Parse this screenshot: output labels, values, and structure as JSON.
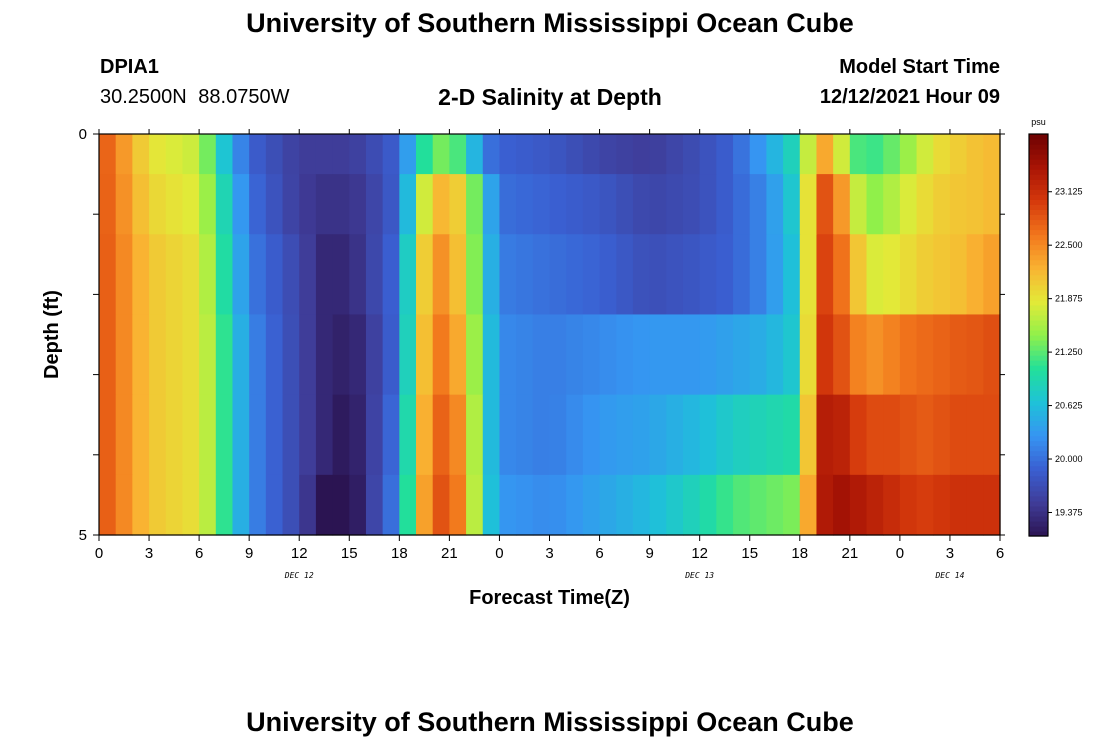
{
  "header": {
    "title": "University of Southern Mississippi Ocean Cube",
    "station_id": "DPIA1",
    "coordinates": "30.2500N 88.0750W",
    "chart_title": "2-D Salinity at Depth",
    "model_start_label": "Model Start Time",
    "model_start_value": "12/12/2021 Hour 09"
  },
  "footer": {
    "title": "University of Southern Mississippi Ocean Cube"
  },
  "chart_data": {
    "type": "heatmap",
    "title": "2-D Salinity at Depth",
    "xlabel": "Forecast Time(Z)",
    "ylabel": "Depth (ft)",
    "unit": "psu",
    "x_start": "Dec 12 00Z",
    "x_step_hours": 3,
    "x_tick_labels": [
      "0",
      "3",
      "6",
      "9",
      "12",
      "15",
      "18",
      "21",
      "0",
      "3",
      "6",
      "9",
      "12",
      "15",
      "18",
      "21",
      "0",
      "3",
      "6"
    ],
    "date_labels": [
      {
        "label": "DEC 12",
        "tick_index": 4
      },
      {
        "label": "DEC 13",
        "tick_index": 12
      },
      {
        "label": "DEC 14",
        "tick_index": 17
      }
    ],
    "y_tick_labels": [
      "0",
      "5"
    ],
    "ylim": [
      0,
      5
    ],
    "depth_levels_ft": [
      0.25,
      0.75,
      1.75,
      2.75,
      3.75,
      4.75
    ],
    "colorbar": {
      "min": 19.1,
      "max": 23.8,
      "tick_values": [
        19.375,
        20.0,
        20.625,
        21.25,
        21.875,
        22.5,
        23.125
      ],
      "tick_labels": [
        "19.375",
        "20.000",
        "20.625",
        "21.250",
        "21.875",
        "22.500",
        "23.125"
      ],
      "colors": [
        "#2b1452",
        "#3f3c98",
        "#3a5fd1",
        "#3695f2",
        "#1ec2d8",
        "#22e09a",
        "#90f04a",
        "#e3ea38",
        "#f9b332",
        "#f2761c",
        "#d5390c",
        "#a91405",
        "#6d0202"
      ]
    },
    "time_hours": [
      0,
      3,
      6,
      7,
      8,
      9,
      12,
      13.5,
      15,
      16,
      18,
      19,
      20,
      21,
      22,
      23,
      24,
      27,
      30,
      33,
      36,
      38,
      40,
      42,
      43,
      44,
      45,
      46,
      47,
      48,
      49,
      50,
      51,
      52,
      54
    ],
    "series": [
      {
        "depth_ft": 0.25,
        "values": [
          22.9,
          21.9,
          21.7,
          21.0,
          20.4,
          19.9,
          19.5,
          19.5,
          19.5,
          19.6,
          19.9,
          20.8,
          21.3,
          21.4,
          21.0,
          20.1,
          19.9,
          19.8,
          19.6,
          19.5,
          19.7,
          19.9,
          20.4,
          21.0,
          22.4,
          22.2,
          21.3,
          21.1,
          21.2,
          21.4,
          21.6,
          21.9,
          22.0,
          22.1,
          22.2
        ]
      },
      {
        "depth_ft": 0.75,
        "values": [
          22.9,
          22.0,
          21.8,
          21.2,
          20.6,
          20.0,
          19.5,
          19.4,
          19.4,
          19.5,
          19.9,
          21.3,
          22.2,
          22.2,
          21.9,
          20.8,
          20.0,
          19.9,
          19.8,
          19.6,
          19.7,
          19.9,
          20.2,
          20.9,
          22.9,
          22.8,
          22.0,
          21.4,
          21.5,
          21.7,
          21.9,
          22.0,
          22.1,
          22.1,
          22.2
        ]
      },
      {
        "depth_ft": 1.75,
        "values": [
          22.9,
          22.1,
          21.9,
          21.3,
          20.7,
          20.1,
          19.6,
          19.3,
          19.3,
          19.5,
          20.0,
          21.6,
          22.5,
          22.4,
          21.9,
          20.9,
          20.1,
          20.0,
          19.9,
          19.7,
          19.8,
          19.9,
          20.2,
          20.8,
          23.0,
          22.9,
          22.4,
          21.8,
          21.8,
          21.9,
          22.0,
          22.1,
          22.1,
          22.2,
          22.4
        ]
      },
      {
        "depth_ft": 2.75,
        "values": [
          22.9,
          22.1,
          21.9,
          21.4,
          20.8,
          20.2,
          19.6,
          19.3,
          19.2,
          19.4,
          20.0,
          21.7,
          22.6,
          22.6,
          22.0,
          21.0,
          20.2,
          20.1,
          20.2,
          20.3,
          20.3,
          20.4,
          20.5,
          20.8,
          23.1,
          23.0,
          22.7,
          22.4,
          22.5,
          22.6,
          22.7,
          22.7,
          22.8,
          22.8,
          22.9
        ]
      },
      {
        "depth_ft": 3.75,
        "values": [
          22.9,
          22.1,
          21.9,
          21.4,
          20.8,
          20.2,
          19.6,
          19.3,
          19.1,
          19.4,
          20.1,
          21.8,
          22.7,
          22.8,
          22.2,
          21.0,
          20.2,
          20.1,
          20.3,
          20.4,
          20.6,
          20.8,
          20.9,
          21.0,
          23.2,
          23.4,
          23.1,
          22.9,
          22.9,
          22.9,
          22.8,
          22.8,
          22.9,
          22.9,
          22.9
        ]
      },
      {
        "depth_ft": 4.75,
        "values": [
          22.9,
          22.1,
          21.9,
          21.4,
          20.8,
          20.2,
          19.6,
          19.1,
          19.0,
          19.4,
          20.2,
          21.9,
          22.8,
          22.9,
          22.3,
          21.0,
          20.3,
          20.2,
          20.4,
          20.6,
          20.9,
          21.2,
          21.3,
          21.4,
          23.2,
          23.5,
          23.4,
          23.3,
          23.2,
          23.1,
          23.0,
          23.0,
          23.1,
          23.1,
          23.1
        ]
      }
    ]
  }
}
